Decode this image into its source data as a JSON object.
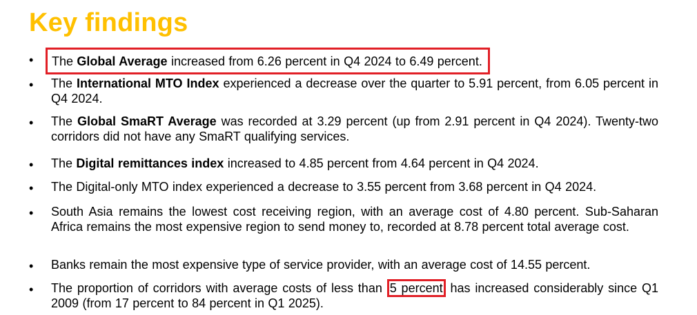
{
  "title": "Key findings",
  "colors": {
    "title": "#ffc000",
    "highlight": "#e11f26",
    "text": "#000000"
  },
  "bullet_symbol": "•",
  "findings": [
    {
      "pre": "The ",
      "bold": "Global Average",
      "post": " increased from 6.26 percent in Q4 2024 to 6.49 percent."
    },
    {
      "pre": "The ",
      "bold": "International MTO Index",
      "post": " experienced a decrease over the quarter to 5.91 percent, from 6.05 percent in Q4 2024."
    },
    {
      "pre": "The ",
      "bold": "Global SmaRT Average",
      "post": " was recorded at 3.29 percent (up from 2.91 percent in Q4 2024). Twenty-two corridors did not have any SmaRT qualifying services."
    },
    {
      "pre": "The ",
      "bold": "Digital remittances index",
      "post": " increased to 4.85 percent from 4.64 percent in Q4 2024."
    },
    {
      "text": "The Digital-only MTO index experienced a decrease to 3.55 percent from 3.68 percent in Q4 2024."
    },
    {
      "text": "South Asia remains the lowest cost receiving region, with an average cost of 4.80 percent. Sub-Saharan Africa remains the most expensive region to send money to, recorded at 8.78 percent total average cost."
    },
    {
      "text": "Banks remain the most expensive type of service provider, with an average cost of 14.55 percent."
    },
    {
      "pre": "The proportion of corridors with average costs of less than ",
      "highlight": "5 percent",
      "post": " has increased considerably since Q1 2009 (from 17 percent to 84 percent in Q1 2025)."
    }
  ]
}
